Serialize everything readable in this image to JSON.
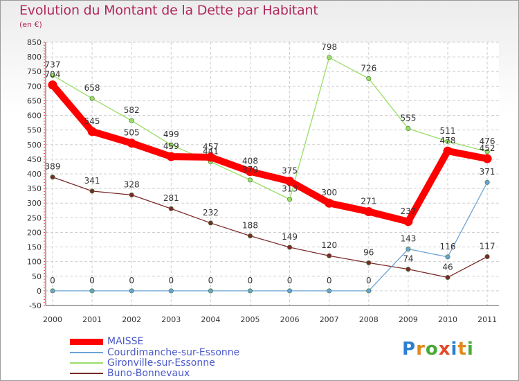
{
  "title": "Evolution du Montant de la Dette par Habitant",
  "subtitle": "(en €)",
  "logo": {
    "letters": [
      "P",
      "r",
      "o",
      "x",
      "i",
      "t",
      "i"
    ],
    "colors": [
      "#2d7fd0",
      "#e08a1e",
      "#49a939",
      "#e04a2a",
      "#2d7fd0",
      "#e08a1e",
      "#49a939"
    ]
  },
  "chart_data": {
    "type": "line",
    "x": [
      "2000",
      "2001",
      "2002",
      "2003",
      "2004",
      "2005",
      "2006",
      "2007",
      "2008",
      "2009",
      "2010",
      "2011"
    ],
    "ylim": [
      -50,
      850
    ],
    "yticks": [
      "-50",
      "0",
      "50",
      "100",
      "150",
      "200",
      "250",
      "300",
      "350",
      "400",
      "450",
      "500",
      "550",
      "600",
      "650",
      "700",
      "750",
      "800",
      "850"
    ],
    "grid": true,
    "legend_position": "bottom-left",
    "series": [
      {
        "name": "MAISSE",
        "color": "#ff0000",
        "values": [
          704,
          545,
          505,
          459,
          457,
          408,
          375,
          300,
          271,
          237,
          478,
          452
        ],
        "labels": [
          "704",
          "545",
          "505",
          "459",
          "457",
          "408",
          "375",
          "300",
          "271",
          "237",
          "478",
          "452"
        ]
      },
      {
        "name": "Courdimanche-sur-Essonne",
        "color": "#6aa3d5",
        "values": [
          0,
          0,
          0,
          0,
          0,
          0,
          0,
          0,
          0,
          143,
          116,
          371
        ],
        "labels": [
          "0",
          "0",
          "0",
          "0",
          "0",
          "0",
          "0",
          "0",
          "0",
          "143",
          "116",
          "371"
        ]
      },
      {
        "name": "Gironville-sur-Essonne",
        "color": "#99dd66",
        "values": [
          737,
          658,
          582,
          499,
          441,
          379,
          313,
          798,
          726,
          555,
          511,
          476
        ],
        "labels": [
          "737",
          "658",
          "582",
          "499",
          "441",
          "379",
          "313",
          "798",
          "726",
          "555",
          "511",
          "476"
        ]
      },
      {
        "name": "Buno-Bonnevaux",
        "color": "#7a2a2a",
        "values": [
          389,
          341,
          328,
          281,
          232,
          188,
          149,
          120,
          96,
          74,
          46,
          117
        ],
        "labels": [
          "389",
          "341",
          "328",
          "281",
          "232",
          "188",
          "149",
          "120",
          "96",
          "74",
          "46",
          "117"
        ]
      }
    ]
  }
}
